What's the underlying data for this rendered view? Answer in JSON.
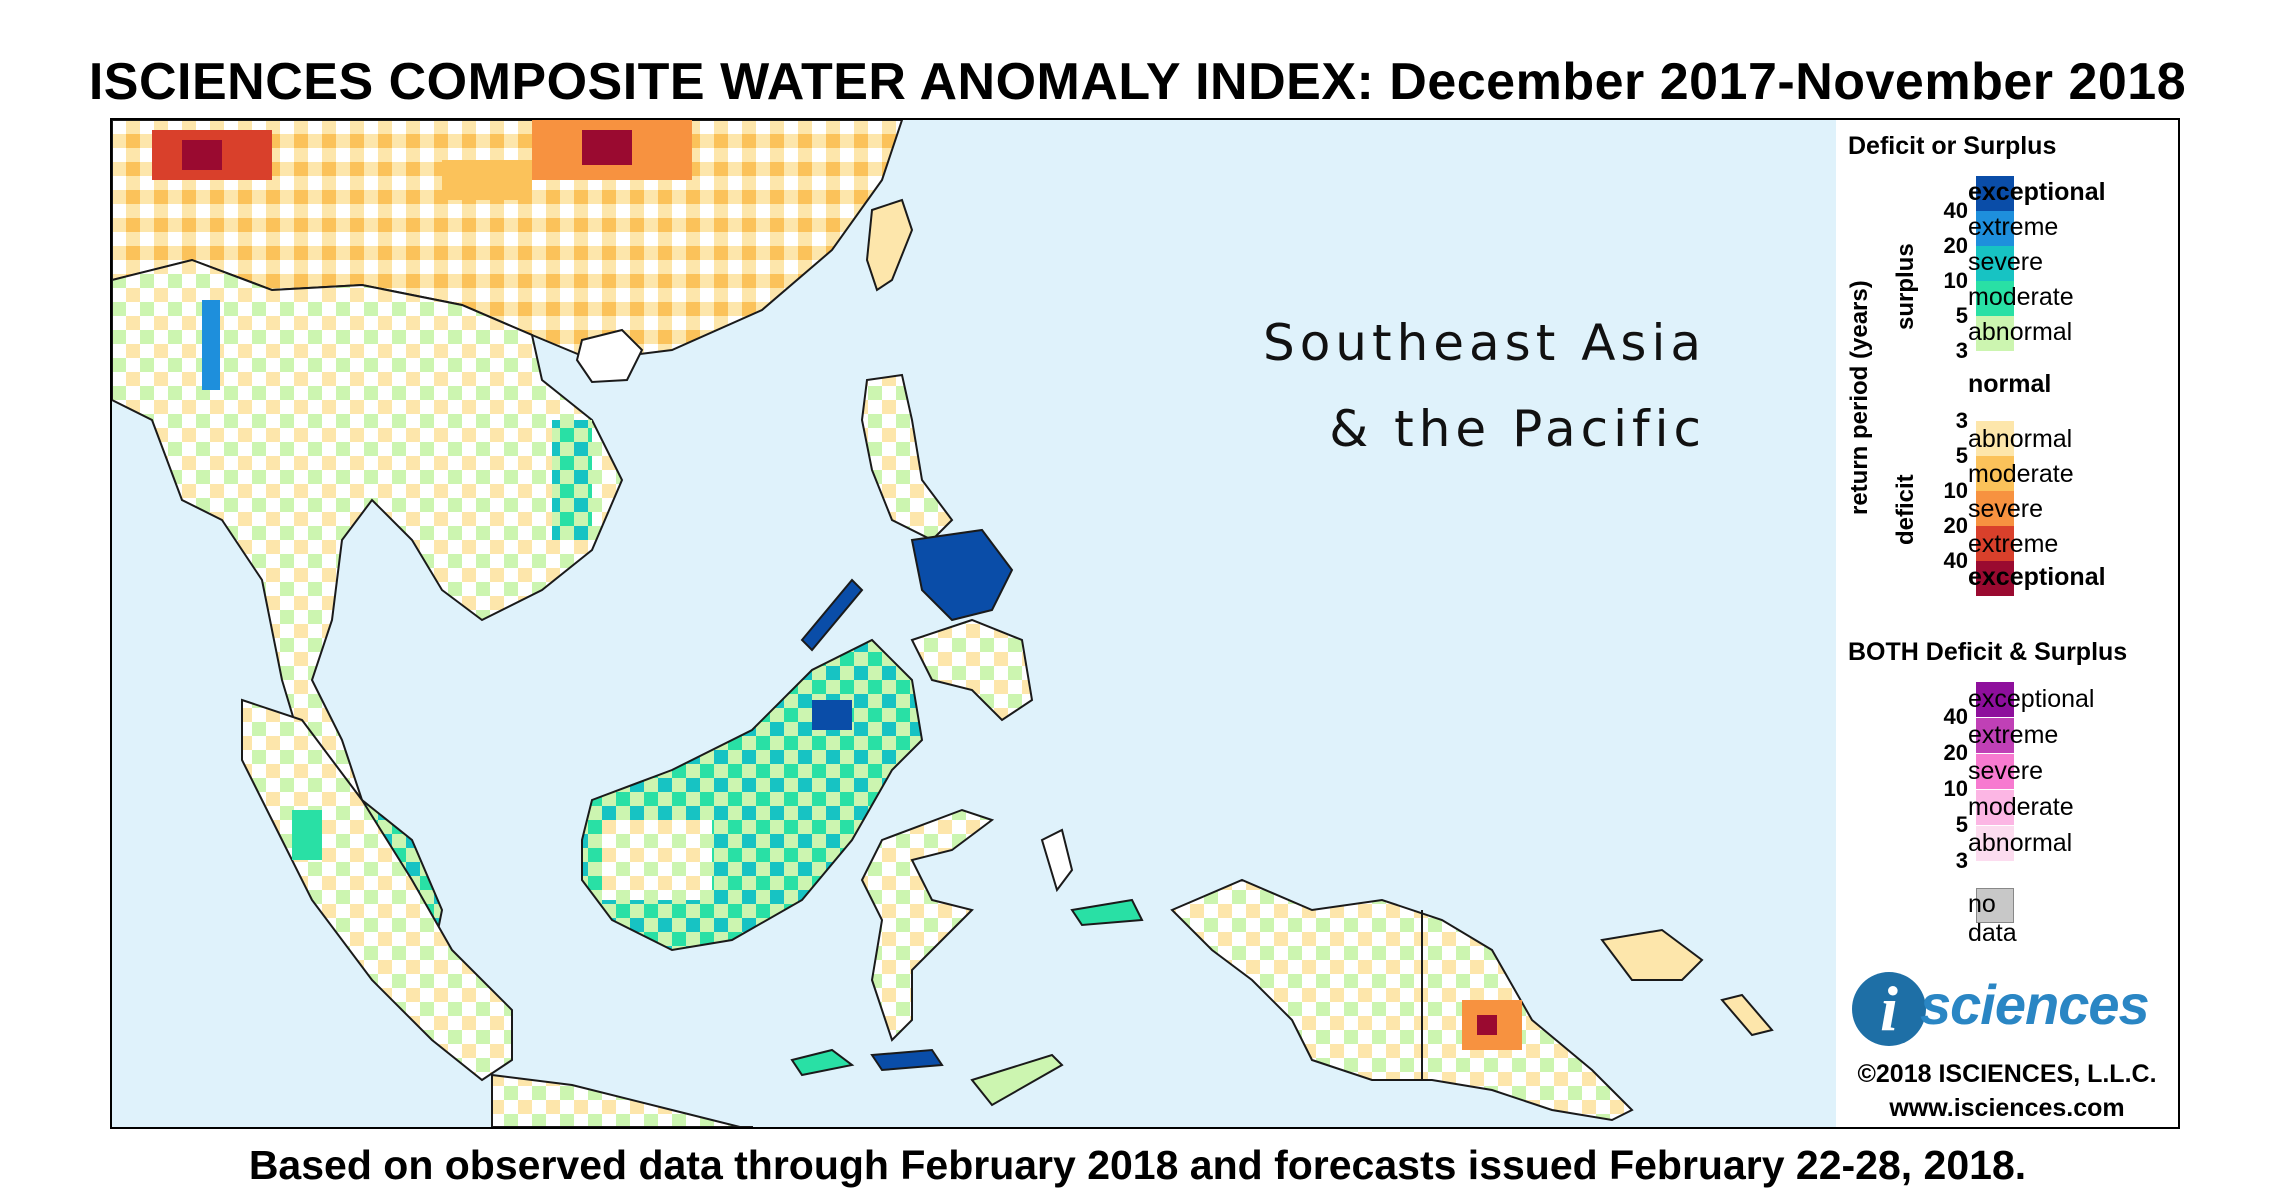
{
  "title": "ISCIENCES COMPOSITE WATER ANOMALY INDEX: December 2017-November 2018",
  "footer": "Based on observed data through February 2018 and forecasts issued February 22-28, 2018.",
  "map": {
    "region_line1": "Southeast Asia",
    "region_line2": "& the Pacific",
    "colors": {
      "ocean": "#dff2fb",
      "land_normal": "#ffffff",
      "border": "#1a1a1a"
    }
  },
  "legend": {
    "deficit_surplus_title": "Deficit or Surplus",
    "axis_label": "return period (years)",
    "surplus_label": "surplus",
    "deficit_label": "deficit",
    "surplus": [
      {
        "label": "exceptional",
        "color": "#0a4da8",
        "bold": true
      },
      {
        "label": "extreme",
        "color": "#1e8fdc",
        "bold": false
      },
      {
        "label": "severe",
        "color": "#17c3c3",
        "bold": false
      },
      {
        "label": "moderate",
        "color": "#29e0a5",
        "bold": false
      },
      {
        "label": "abnormal",
        "color": "#ccf5b0",
        "bold": false
      }
    ],
    "normal": {
      "label": "normal",
      "color": "#ffffff"
    },
    "deficit": [
      {
        "label": "abnormal",
        "color": "#fde6ab",
        "bold": false
      },
      {
        "label": "moderate",
        "color": "#fbc25a",
        "bold": false
      },
      {
        "label": "severe",
        "color": "#f79240",
        "bold": false
      },
      {
        "label": "extreme",
        "color": "#d9402b",
        "bold": false
      },
      {
        "label": "exceptional",
        "color": "#9a0a30",
        "bold": true
      }
    ],
    "surplus_ticks": [
      "40",
      "20",
      "10",
      "5",
      "3"
    ],
    "deficit_ticks": [
      "3",
      "5",
      "10",
      "20",
      "40"
    ],
    "both_title": "BOTH Deficit & Surplus",
    "both": [
      {
        "label": "exceptional",
        "color": "#8e0f9c"
      },
      {
        "label": "extreme",
        "color": "#c040b6"
      },
      {
        "label": "severe",
        "color": "#f77ad0"
      },
      {
        "label": "moderate",
        "color": "#fcb6e4"
      },
      {
        "label": "abnormal",
        "color": "#fcdcef"
      }
    ],
    "both_ticks": [
      "40",
      "20",
      "10",
      "5",
      "3"
    ],
    "no_data": {
      "label": "no data",
      "color": "#c8c8c8"
    }
  },
  "branding": {
    "logo_letter": "i",
    "logo_word": "sciences",
    "copyright": "©2018 ISCIENCES, L.L.C.",
    "website": "www.isciences.com"
  }
}
